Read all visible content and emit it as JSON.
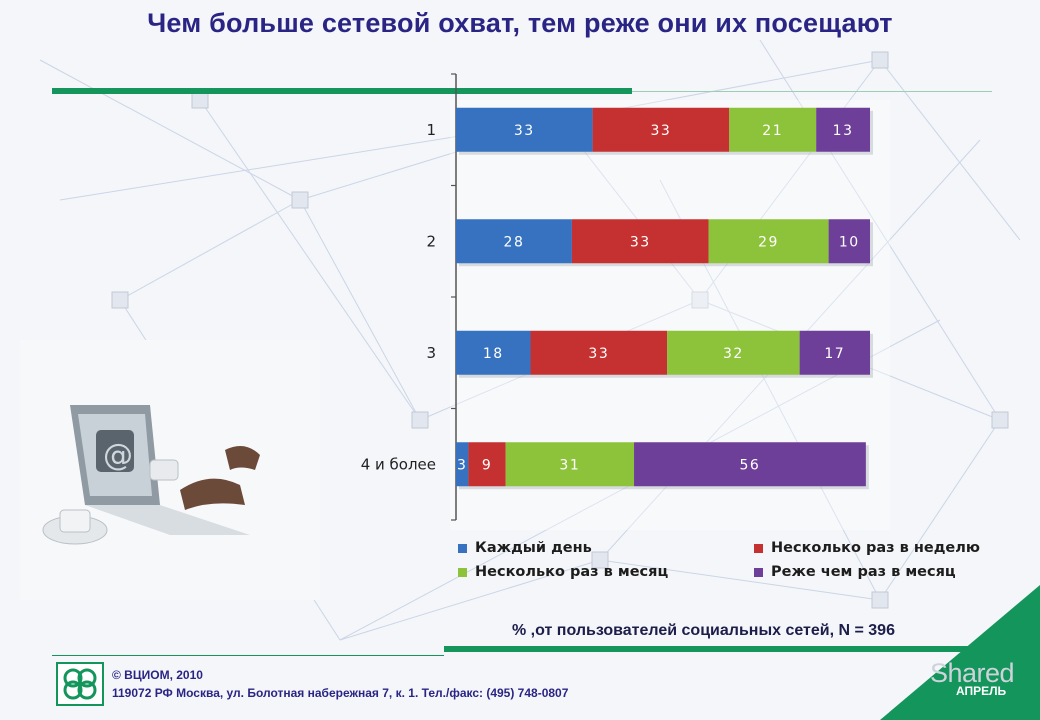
{
  "title": "Чем больше сетевой охват, тем реже они их посещают",
  "note": "% ,от пользователей социальных сетей, N = 396",
  "footer": {
    "copyright": "© ВЦИОМ, 2010",
    "address": "119072 РФ Москва, ул. Болотная набережная 7, к. 1.  Тел./факс: (495) 748-0807",
    "watermark": "Shared",
    "corner_label": "АПРЕЛЬ",
    "logo_icon": "vciom-logo-icon"
  },
  "colors": {
    "accent_green": "#13955b",
    "title_blue": "#2a2585"
  },
  "chart_data": {
    "type": "bar",
    "orientation": "horizontal",
    "stacked": true,
    "categories": [
      "1",
      "2",
      "3",
      "4 и более"
    ],
    "series": [
      {
        "name": "Каждый день",
        "color": "#3672bf",
        "values": [
          33,
          28,
          18,
          3
        ]
      },
      {
        "name": "Несколько раз в неделю",
        "color": "#c53131",
        "values": [
          33,
          33,
          33,
          9
        ]
      },
      {
        "name": "Несколько раз в месяц",
        "color": "#8dc33b",
        "values": [
          21,
          29,
          32,
          31
        ]
      },
      {
        "name": "Реже чем раз в месяц",
        "color": "#6e3f98",
        "values": [
          13,
          10,
          17,
          56
        ]
      }
    ],
    "xlim": [
      0,
      100
    ],
    "grid": false,
    "legend_position": "bottom"
  }
}
